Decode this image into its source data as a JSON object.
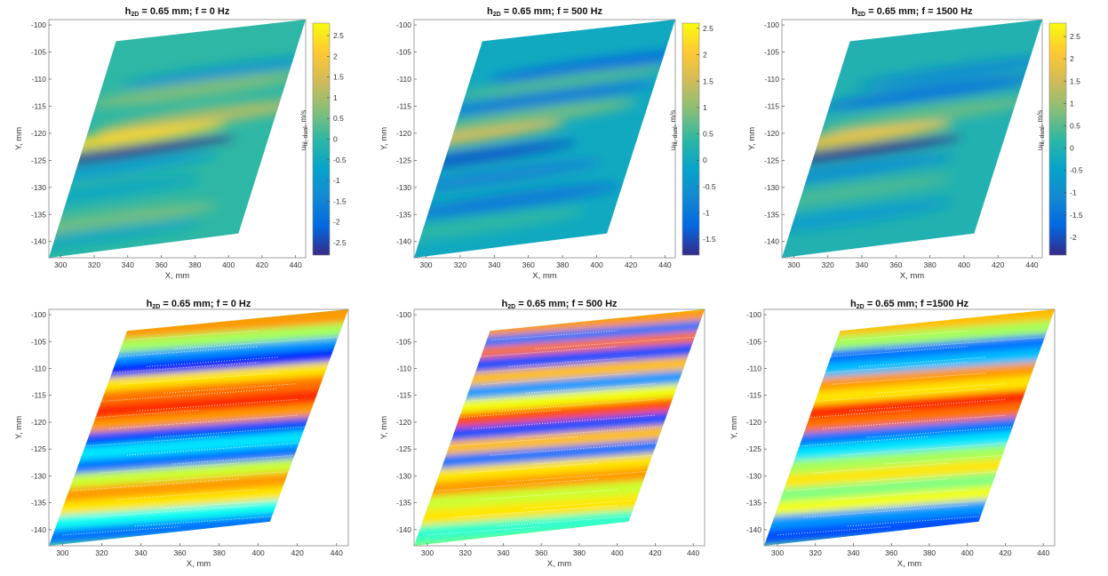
{
  "colors": {
    "parula": [
      "#352a87",
      "#0268e1",
      "#1389d2",
      "#06a4ca",
      "#2eb7a4",
      "#87bf77",
      "#d1bb59",
      "#fec832",
      "#f9fb0e"
    ],
    "jet": [
      "#0000ff",
      "#0080ff",
      "#00ffff",
      "#80ff80",
      "#ffff00",
      "#ff8000",
      "#ff0000"
    ]
  },
  "chart_data": [
    {
      "type": "heatmap",
      "colormap": "parula",
      "title": {
        "main": "h",
        "sub": "2D",
        "rest": " = 0.65 mm; f = 0 Hz"
      },
      "xlabel": "X, mm",
      "ylabel": "Y, mm",
      "xticks": [
        "300",
        "320",
        "340",
        "360",
        "380",
        "400",
        "420",
        "440"
      ],
      "yticks": [
        "-100",
        "-105",
        "-110",
        "-115",
        "-120",
        "-125",
        "-130",
        "-135",
        "-140"
      ],
      "xlim": [
        293,
        446
      ],
      "ylim": [
        -143,
        -99
      ],
      "colorbar": {
        "label": {
          "main": "u",
          "sub": "fil, dual",
          "rest": ", m/s"
        },
        "ticks": [
          "2.5",
          "2",
          "1.5",
          "1",
          "0.5",
          "0",
          "-0.5",
          "-1",
          "-1.5",
          "-2",
          "-2.5"
        ],
        "range": [
          -2.8,
          2.8
        ]
      },
      "bands": [
        {
          "y": -108.5,
          "x": 400,
          "width": 1.2,
          "value": -1.0
        },
        {
          "y": -112,
          "x": 380,
          "width": 1.5,
          "value": 0.6
        },
        {
          "y": -117,
          "x": 385,
          "width": 1.6,
          "value": 1.0
        },
        {
          "y": -121,
          "x": 335,
          "width": 1.2,
          "value": 2.3
        },
        {
          "y": -123.5,
          "x": 340,
          "width": 0.9,
          "value": -2.8
        },
        {
          "y": -126.5,
          "x": 330,
          "width": 1.4,
          "value": -0.8
        },
        {
          "y": -131,
          "x": 320,
          "width": 1.5,
          "value": -0.5
        },
        {
          "y": -136,
          "x": 330,
          "width": 1.6,
          "value": 0.5
        },
        {
          "y": -139,
          "x": 320,
          "width": 1.3,
          "value": -0.5
        }
      ]
    },
    {
      "type": "heatmap",
      "colormap": "parula",
      "title": {
        "main": "h",
        "sub": "2D",
        "rest": " = 0.65 mm; f = 500 Hz"
      },
      "xlabel": "X, mm",
      "ylabel": "Y, mm",
      "xticks": [
        "300",
        "320",
        "340",
        "360",
        "380",
        "400",
        "420",
        "440"
      ],
      "yticks": [
        "-100",
        "-105",
        "-110",
        "-115",
        "-120",
        "-125",
        "-130",
        "-135",
        "-140"
      ],
      "xlim": [
        293,
        446
      ],
      "ylim": [
        -143,
        -99
      ],
      "colorbar": {
        "label": {
          "main": "u",
          "sub": "fil, dual",
          "rest": ", m/s"
        },
        "ticks": [
          "2.5",
          "2",
          "1.5",
          "1",
          "0.5",
          "0",
          "-0.5",
          "-1",
          "-1.5"
        ],
        "range": [
          -1.8,
          2.6
        ]
      },
      "bands": [
        {
          "y": -107.5,
          "x": 400,
          "width": 1.2,
          "value": -1.2
        },
        {
          "y": -110.5,
          "x": 380,
          "width": 1.3,
          "value": 0.6
        },
        {
          "y": -113.5,
          "x": 370,
          "width": 1.3,
          "value": -0.9
        },
        {
          "y": -117,
          "x": 360,
          "width": 1.4,
          "value": 0.8
        },
        {
          "y": -121,
          "x": 318,
          "width": 1.1,
          "value": 1.6
        },
        {
          "y": -124.5,
          "x": 325,
          "width": 1.1,
          "value": -1.4
        },
        {
          "y": -128,
          "x": 340,
          "width": 1.4,
          "value": -0.7
        },
        {
          "y": -132.5,
          "x": 350,
          "width": 1.5,
          "value": -0.9
        },
        {
          "y": -137,
          "x": 330,
          "width": 1.5,
          "value": 0.4
        }
      ]
    },
    {
      "type": "heatmap",
      "colormap": "parula",
      "title": {
        "main": "h",
        "sub": "2D",
        "rest": " = 0.65 mm; f = 1500 Hz"
      },
      "xlabel": "X, mm",
      "ylabel": "Y, mm",
      "xticks": [
        "300",
        "320",
        "340",
        "360",
        "380",
        "400",
        "420",
        "440"
      ],
      "yticks": [
        "-100",
        "-105",
        "-110",
        "-115",
        "-120",
        "-125",
        "-130",
        "-135",
        "-140"
      ],
      "xlim": [
        293,
        446
      ],
      "ylim": [
        -143,
        -99
      ],
      "colorbar": {
        "label": {
          "main": "u",
          "sub": "fil, dual",
          "rest": ", m/s"
        },
        "ticks": [
          "2.5",
          "2",
          "1.5",
          "1",
          "0.5",
          "0",
          "-0.5",
          "-1",
          "-1.5",
          "-2"
        ],
        "range": [
          -2.4,
          2.8
        ]
      },
      "bands": [
        {
          "y": -108.5,
          "x": 400,
          "width": 1.2,
          "value": -1.0
        },
        {
          "y": -112.5,
          "x": 380,
          "width": 1.4,
          "value": -1.4
        },
        {
          "y": -116.5,
          "x": 380,
          "width": 1.5,
          "value": 0.6
        },
        {
          "y": -121,
          "x": 330,
          "width": 1.2,
          "value": 2.0
        },
        {
          "y": -123.5,
          "x": 335,
          "width": 0.9,
          "value": -2.4
        },
        {
          "y": -127,
          "x": 330,
          "width": 1.3,
          "value": -0.9
        },
        {
          "y": -131,
          "x": 330,
          "width": 1.5,
          "value": 0.4
        },
        {
          "y": -135.5,
          "x": 330,
          "width": 1.5,
          "value": -0.6
        }
      ]
    },
    {
      "type": "heatmap",
      "colormap": "jet",
      "title": {
        "main": "h",
        "sub": "2D",
        "rest": " = 0.65 mm; f = 0 Hz"
      },
      "xlabel": "X, mm",
      "ylabel": "Y, mm",
      "xticks": [
        "300",
        "320",
        "340",
        "360",
        "380",
        "400",
        "420",
        "440"
      ],
      "yticks": [
        "-100",
        "-105",
        "-110",
        "-115",
        "-120",
        "-125",
        "-130",
        "-135",
        "-140"
      ],
      "xlim": [
        293,
        446
      ],
      "ylim": [
        -143,
        -99
      ],
      "bands": [
        {
          "y": -101.5,
          "value": 0.85
        },
        {
          "y": -104.5,
          "value": 0.8
        },
        {
          "y": -107,
          "value": 0.55
        },
        {
          "y": -109.5,
          "value": 0.2
        },
        {
          "y": -111.5,
          "value": 0.05
        },
        {
          "y": -114,
          "value": 0.7
        },
        {
          "y": -116.5,
          "value": 0.85
        },
        {
          "y": -119,
          "value": 0.95
        },
        {
          "y": -121.5,
          "value": 0.8
        },
        {
          "y": -124,
          "value": 0.1
        },
        {
          "y": -126.5,
          "value": 0.3
        },
        {
          "y": -129,
          "value": 0.15
        },
        {
          "y": -131.5,
          "value": 0.6
        },
        {
          "y": -134,
          "value": 0.8
        },
        {
          "y": -136.5,
          "value": 0.7
        },
        {
          "y": -139,
          "value": 0.35
        },
        {
          "y": -141.5,
          "value": 0.15
        }
      ]
    },
    {
      "type": "heatmap",
      "colormap": "jet",
      "title": {
        "main": "h",
        "sub": "2D",
        "rest": " = 0.65 mm; f = 500 Hz"
      },
      "xlabel": "X, mm",
      "ylabel": "Y, mm",
      "xticks": [
        "300",
        "320",
        "340",
        "360",
        "380",
        "400",
        "420",
        "440"
      ],
      "yticks": [
        "-100",
        "-105",
        "-110",
        "-115",
        "-120",
        "-125",
        "-130",
        "-135",
        "-140"
      ],
      "xlim": [
        293,
        446
      ],
      "ylim": [
        -143,
        -99
      ],
      "bands": [
        {
          "y": -101.5,
          "value": 0.6
        },
        {
          "y": -104,
          "value": 0.8
        },
        {
          "y": -106.5,
          "value": 0.15
        },
        {
          "y": -108.5,
          "value": 0.85
        },
        {
          "y": -110.5,
          "value": 0.1
        },
        {
          "y": -113,
          "value": 0.75
        },
        {
          "y": -115.5,
          "value": 0.2
        },
        {
          "y": -118,
          "value": 0.65
        },
        {
          "y": -120.5,
          "value": 0.9
        },
        {
          "y": -123,
          "value": 0.1
        },
        {
          "y": -125.5,
          "value": 0.75
        },
        {
          "y": -128,
          "value": 0.15
        },
        {
          "y": -130.5,
          "value": 0.7
        },
        {
          "y": -133,
          "value": 0.8
        },
        {
          "y": -135.5,
          "value": 0.6
        },
        {
          "y": -138,
          "value": 0.7
        },
        {
          "y": -141,
          "value": 0.4
        }
      ]
    },
    {
      "type": "heatmap",
      "colormap": "jet",
      "title": {
        "main": "h",
        "sub": "2D",
        "rest": " = 0.65 mm; f =1500 Hz"
      },
      "xlabel": "X, mm",
      "ylabel": "Y, mm",
      "xticks": [
        "300",
        "320",
        "340",
        "360",
        "380",
        "400",
        "420",
        "440"
      ],
      "yticks": [
        "-100",
        "-105",
        "-110",
        "-115",
        "-120",
        "-125",
        "-130",
        "-135",
        "-140"
      ],
      "xlim": [
        293,
        446
      ],
      "ylim": [
        -143,
        -99
      ],
      "bands": [
        {
          "y": -101.5,
          "value": 0.85
        },
        {
          "y": -104,
          "value": 0.75
        },
        {
          "y": -106.5,
          "value": 0.55
        },
        {
          "y": -109,
          "value": 0.15
        },
        {
          "y": -111.5,
          "value": 0.25
        },
        {
          "y": -114,
          "value": 0.8
        },
        {
          "y": -116.5,
          "value": 0.7
        },
        {
          "y": -119,
          "value": 0.95
        },
        {
          "y": -121.5,
          "value": 0.85
        },
        {
          "y": -124,
          "value": 0.15
        },
        {
          "y": -126.5,
          "value": 0.3
        },
        {
          "y": -129,
          "value": 0.55
        },
        {
          "y": -131.5,
          "value": 0.7
        },
        {
          "y": -134,
          "value": 0.5
        },
        {
          "y": -136.5,
          "value": 0.65
        },
        {
          "y": -139,
          "value": 0.2
        },
        {
          "y": -141.5,
          "value": 0.1
        }
      ]
    }
  ]
}
